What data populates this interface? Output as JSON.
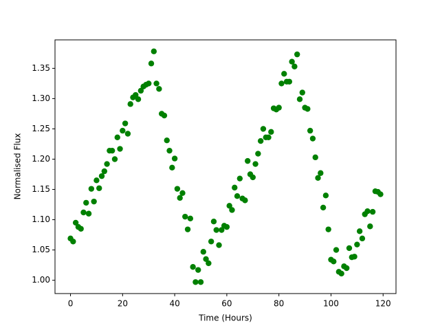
{
  "chart_data": {
    "type": "scatter",
    "x_label": "Time (Hours)",
    "y_label": "Normalised Flux",
    "color": "#008000",
    "x": [
      0,
      1,
      2,
      3,
      4,
      5,
      6,
      7,
      8,
      9,
      10,
      11,
      12,
      13,
      14,
      15,
      16,
      17,
      18,
      19,
      20,
      21,
      22,
      23,
      24,
      25,
      26,
      27,
      28,
      29,
      30,
      31,
      32,
      33,
      34,
      35,
      36,
      37,
      38,
      39,
      40,
      41,
      42,
      43,
      44,
      45,
      46,
      47,
      48,
      49,
      50,
      51,
      52,
      53,
      54,
      55,
      56,
      57,
      58,
      59,
      60,
      61,
      62,
      63,
      64,
      65,
      66,
      67,
      68,
      69,
      70,
      71,
      72,
      73,
      74,
      75,
      76,
      77,
      78,
      79,
      80,
      81,
      82,
      83,
      84,
      85,
      86,
      87,
      88,
      89,
      90,
      91,
      92,
      93,
      94,
      95,
      96,
      97,
      98,
      99,
      100,
      101,
      102,
      103,
      104,
      105,
      106,
      107,
      108,
      109,
      110,
      111,
      112,
      113,
      114,
      115,
      116,
      117,
      118,
      119
    ],
    "values": [
      1.069,
      1.064,
      1.095,
      1.088,
      1.085,
      1.112,
      1.128,
      1.11,
      1.151,
      1.13,
      1.165,
      1.152,
      1.172,
      1.18,
      1.192,
      1.214,
      1.214,
      1.2,
      1.236,
      1.217,
      1.247,
      1.259,
      1.242,
      1.291,
      1.302,
      1.306,
      1.299,
      1.313,
      1.32,
      1.323,
      1.325,
      1.358,
      1.378,
      1.325,
      1.316,
      1.275,
      1.272,
      1.231,
      1.214,
      1.186,
      1.201,
      1.151,
      1.136,
      1.144,
      1.105,
      1.084,
      1.102,
      1.022,
      0.997,
      1.017,
      0.997,
      1.047,
      1.035,
      1.028,
      1.064,
      1.097,
      1.083,
      1.058,
      1.083,
      1.09,
      1.088,
      1.123,
      1.116,
      1.153,
      1.139,
      1.168,
      1.135,
      1.132,
      1.197,
      1.175,
      1.17,
      1.192,
      1.209,
      1.23,
      1.25,
      1.236,
      1.236,
      1.245,
      1.284,
      1.282,
      1.285,
      1.325,
      1.341,
      1.328,
      1.328,
      1.361,
      1.353,
      1.373,
      1.299,
      1.31,
      1.285,
      1.283,
      1.247,
      1.234,
      1.203,
      1.169,
      1.177,
      1.12,
      1.14,
      1.084,
      1.034,
      1.031,
      1.05,
      1.014,
      1.011,
      1.023,
      1.02,
      1.053,
      1.038,
      1.039,
      1.059,
      1.081,
      1.069,
      1.109,
      1.114,
      1.089,
      1.113,
      1.147,
      1.146,
      1.142
    ],
    "xlim": [
      -5.95,
      124.95
    ],
    "ylim": [
      0.978,
      1.397
    ],
    "xticks": [
      0,
      20,
      40,
      60,
      80,
      100,
      120
    ],
    "yticks": [
      {
        "value": 1.0,
        "label": "1.00"
      },
      {
        "value": 1.05,
        "label": "1.05"
      },
      {
        "value": 1.1,
        "label": "1.10"
      },
      {
        "value": 1.15,
        "label": "1.15"
      },
      {
        "value": 1.2,
        "label": "1.20"
      },
      {
        "value": 1.25,
        "label": "1.25"
      },
      {
        "value": 1.3,
        "label": "1.30"
      },
      {
        "value": 1.35,
        "label": "1.35"
      }
    ],
    "grid": false
  }
}
